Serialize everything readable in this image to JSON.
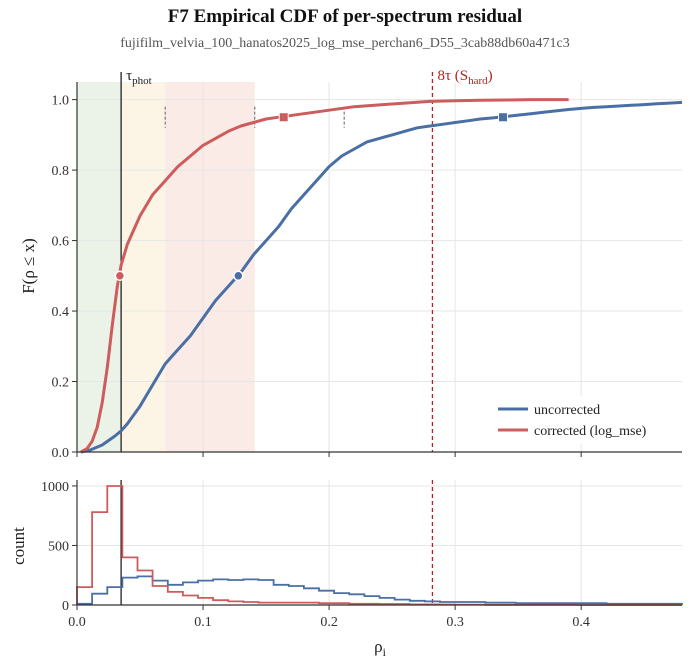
{
  "figure": {
    "title": "F7    Empirical CDF of per-spectrum residual",
    "subtitle": "fujifilm_velvia_100_hanatos2025_log_mse_perchan6_D55_3cab88db60a471c3"
  },
  "colors": {
    "uncorrected": "#4a6fa5",
    "corrected": "#cd5c5c",
    "tau_line": "#222222",
    "hard_line": "#b22222",
    "zone_green": "#e9f1e4",
    "zone_yellow": "#fcf4e2",
    "zone_red": "#fbe9e3"
  },
  "chart_data": [
    {
      "type": "line",
      "title": "",
      "xlabel": "",
      "ylabel": "F(ρ ≤ x)",
      "xlim": [
        0.0,
        0.48
      ],
      "ylim": [
        0.0,
        1.05
      ],
      "yticks": [
        "0.0",
        "0.2",
        "0.4",
        "0.6",
        "0.8",
        "1.0"
      ],
      "grid": true,
      "legend_position": "bottom-right",
      "shaded_zones": [
        {
          "from": 0.0,
          "to": 0.035,
          "color": "green"
        },
        {
          "from": 0.035,
          "to": 0.07,
          "color": "yellow"
        },
        {
          "from": 0.07,
          "to": 0.141,
          "color": "red"
        }
      ],
      "vlines": [
        {
          "x": 0.035,
          "label": "τ",
          "label_sub": "phot",
          "style": "solid"
        },
        {
          "x": 0.282,
          "label": "8τ (S",
          "label_sub": "hard",
          "label_end": ")",
          "style": "dashed"
        }
      ],
      "tick_marks": [
        0.07,
        0.141,
        0.212
      ],
      "series": [
        {
          "name": "uncorrected",
          "x": [
            0.003,
            0.01,
            0.02,
            0.03,
            0.035,
            0.04,
            0.05,
            0.06,
            0.07,
            0.08,
            0.09,
            0.1,
            0.11,
            0.12,
            0.13,
            0.14,
            0.15,
            0.16,
            0.17,
            0.18,
            0.19,
            0.2,
            0.21,
            0.22,
            0.23,
            0.24,
            0.25,
            0.26,
            0.27,
            0.28,
            0.29,
            0.3,
            0.31,
            0.32,
            0.33,
            0.34,
            0.35,
            0.36,
            0.37,
            0.38,
            0.39,
            0.4,
            0.41,
            0.42,
            0.43,
            0.44,
            0.45,
            0.46,
            0.47,
            0.48
          ],
          "y": [
            0.0,
            0.005,
            0.02,
            0.045,
            0.06,
            0.08,
            0.13,
            0.19,
            0.25,
            0.29,
            0.33,
            0.38,
            0.43,
            0.47,
            0.51,
            0.56,
            0.6,
            0.64,
            0.69,
            0.73,
            0.77,
            0.81,
            0.84,
            0.86,
            0.88,
            0.89,
            0.9,
            0.91,
            0.92,
            0.925,
            0.93,
            0.935,
            0.94,
            0.945,
            0.948,
            0.952,
            0.956,
            0.96,
            0.964,
            0.968,
            0.972,
            0.975,
            0.978,
            0.98,
            0.982,
            0.984,
            0.986,
            0.988,
            0.99,
            0.992
          ]
        },
        {
          "name": "corrected (log_mse)",
          "x": [
            0.003,
            0.008,
            0.012,
            0.016,
            0.02,
            0.024,
            0.028,
            0.032,
            0.035,
            0.04,
            0.045,
            0.05,
            0.06,
            0.07,
            0.08,
            0.09,
            0.1,
            0.11,
            0.12,
            0.13,
            0.14,
            0.15,
            0.16,
            0.18,
            0.2,
            0.22,
            0.24,
            0.26,
            0.28,
            0.3,
            0.32,
            0.34,
            0.36,
            0.38,
            0.39
          ],
          "y": [
            0.0,
            0.01,
            0.03,
            0.07,
            0.14,
            0.24,
            0.36,
            0.47,
            0.53,
            0.59,
            0.63,
            0.67,
            0.73,
            0.77,
            0.81,
            0.84,
            0.87,
            0.89,
            0.91,
            0.925,
            0.935,
            0.945,
            0.95,
            0.96,
            0.97,
            0.98,
            0.985,
            0.99,
            0.995,
            0.997,
            0.998,
            0.999,
            1.0,
            1.0,
            1.0
          ]
        }
      ],
      "markers": [
        {
          "series": "uncorrected",
          "x": 0.128,
          "y": 0.5,
          "shape": "circle"
        },
        {
          "series": "uncorrected",
          "x": 0.338,
          "y": 0.95,
          "shape": "square"
        },
        {
          "series": "corrected (log_mse)",
          "x": 0.034,
          "y": 0.5,
          "shape": "circle"
        },
        {
          "series": "corrected (log_mse)",
          "x": 0.164,
          "y": 0.95,
          "shape": "square"
        }
      ]
    },
    {
      "type": "histogram",
      "title": "",
      "xlabel": "ρ",
      "xlabel_sub": "i",
      "ylabel": "count",
      "xlim": [
        0.0,
        0.48
      ],
      "ylim": [
        0,
        1050
      ],
      "xticks": [
        "0.0",
        "0.1",
        "0.2",
        "0.3",
        "0.4"
      ],
      "yticks": [
        "0",
        "500",
        "1000"
      ],
      "bin_width": 0.012,
      "series": [
        {
          "name": "uncorrected",
          "values": [
            10,
            95,
            150,
            230,
            240,
            205,
            170,
            190,
            205,
            215,
            210,
            215,
            210,
            170,
            160,
            140,
            120,
            100,
            90,
            75,
            60,
            45,
            35,
            30,
            25,
            25,
            25,
            20,
            20,
            15,
            15,
            15,
            15,
            15,
            15,
            10,
            10,
            10,
            10,
            10
          ]
        },
        {
          "name": "corrected (log_mse)",
          "values": [
            150,
            780,
            1000,
            400,
            290,
            160,
            110,
            80,
            60,
            40,
            30,
            25,
            20,
            20,
            20,
            20,
            15,
            15,
            10,
            10,
            8,
            8,
            5,
            5,
            4,
            3,
            3,
            2,
            2,
            2,
            1,
            1,
            1,
            0,
            0,
            0,
            0,
            0,
            0,
            0
          ]
        }
      ]
    }
  ]
}
